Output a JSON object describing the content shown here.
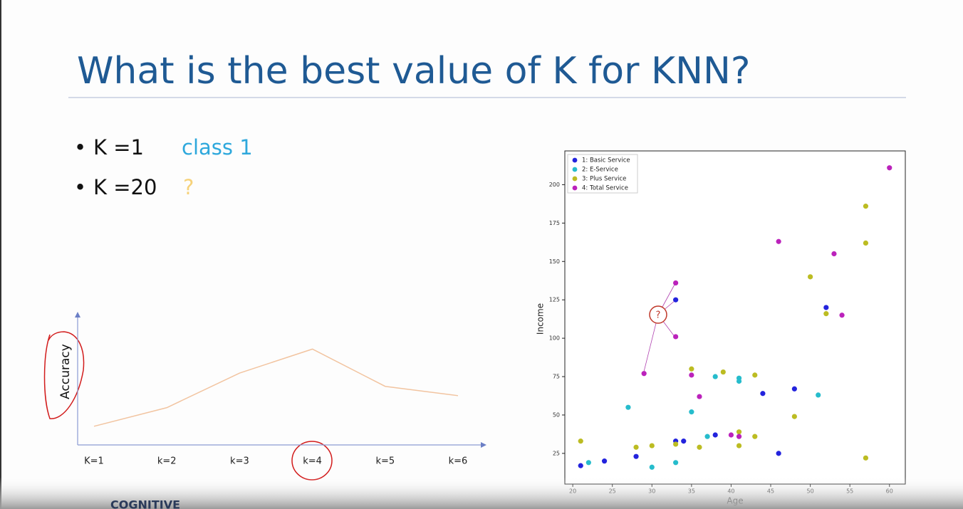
{
  "slide": {
    "title": "What is the best value of K for KNN?",
    "bullets": [
      {
        "label": "K =1",
        "answer": "class 1"
      },
      {
        "label": "K =20",
        "answer": "?"
      }
    ],
    "footer": "COGNITIVE"
  },
  "chart_data": [
    {
      "type": "line",
      "y_label": "Accuracy",
      "categories": [
        "K=1",
        "k=2",
        "k=3",
        "k=4",
        "k=5",
        "k=6"
      ],
      "values": [
        14,
        28,
        54,
        72,
        44,
        37
      ],
      "ylim": [
        0,
        100
      ],
      "color": "#f2c4a0"
    },
    {
      "type": "scatter",
      "x_label": "Age",
      "y_label": "Income",
      "annotation": "?",
      "legend": "upper left",
      "xlim": [
        19,
        62
      ],
      "xticks": [
        20,
        25,
        30,
        35,
        40,
        45,
        50,
        55,
        60
      ],
      "ylim": [
        5,
        222
      ],
      "yticks": [
        25,
        50,
        75,
        100,
        125,
        150,
        175,
        200
      ],
      "series": [
        {
          "name": "1: Basic Service",
          "color": "#2323dd",
          "x": [
            21,
            24,
            28,
            33,
            34,
            33,
            38,
            44,
            46,
            48,
            52
          ],
          "values": [
            17,
            20,
            23,
            33,
            33,
            125,
            37,
            64,
            25,
            67,
            120
          ]
        },
        {
          "name": "2: E-Service",
          "color": "#26bccc",
          "x": [
            22,
            27,
            30,
            33,
            35,
            37,
            38,
            41,
            41,
            51
          ],
          "values": [
            19,
            55,
            16,
            19,
            52,
            36,
            75,
            74,
            72,
            63
          ]
        },
        {
          "name": "3: Plus Service",
          "color": "#bcbc22",
          "x": [
            21,
            28,
            30,
            33,
            35,
            36,
            39,
            41,
            41,
            43,
            43,
            48,
            50,
            52,
            57,
            57,
            57
          ],
          "values": [
            33,
            29,
            30,
            31,
            80,
            29,
            78,
            39,
            30,
            76,
            36,
            49,
            140,
            116,
            186,
            162,
            22
          ]
        },
        {
          "name": "4: Total Service",
          "color": "#bb22bb",
          "x": [
            29,
            33,
            33,
            35,
            36,
            40,
            41,
            46,
            53,
            54,
            60
          ],
          "values": [
            77,
            136,
            101,
            76,
            62,
            37,
            36,
            163,
            155,
            115,
            211
          ]
        }
      ]
    }
  ]
}
